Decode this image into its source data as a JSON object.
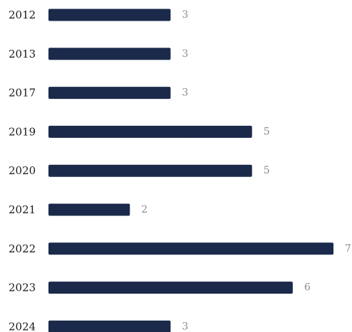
{
  "chart_data": {
    "type": "bar",
    "orientation": "horizontal",
    "categories": [
      "2012",
      "2013",
      "2017",
      "2019",
      "2020",
      "2021",
      "2022",
      "2023",
      "2024"
    ],
    "values": [
      3,
      3,
      3,
      5,
      5,
      2,
      7,
      6,
      3
    ],
    "xlim": [
      0,
      7
    ],
    "grid": false,
    "bar_color": "#1b2a4a",
    "value_label_color": "#8a8a8a"
  }
}
